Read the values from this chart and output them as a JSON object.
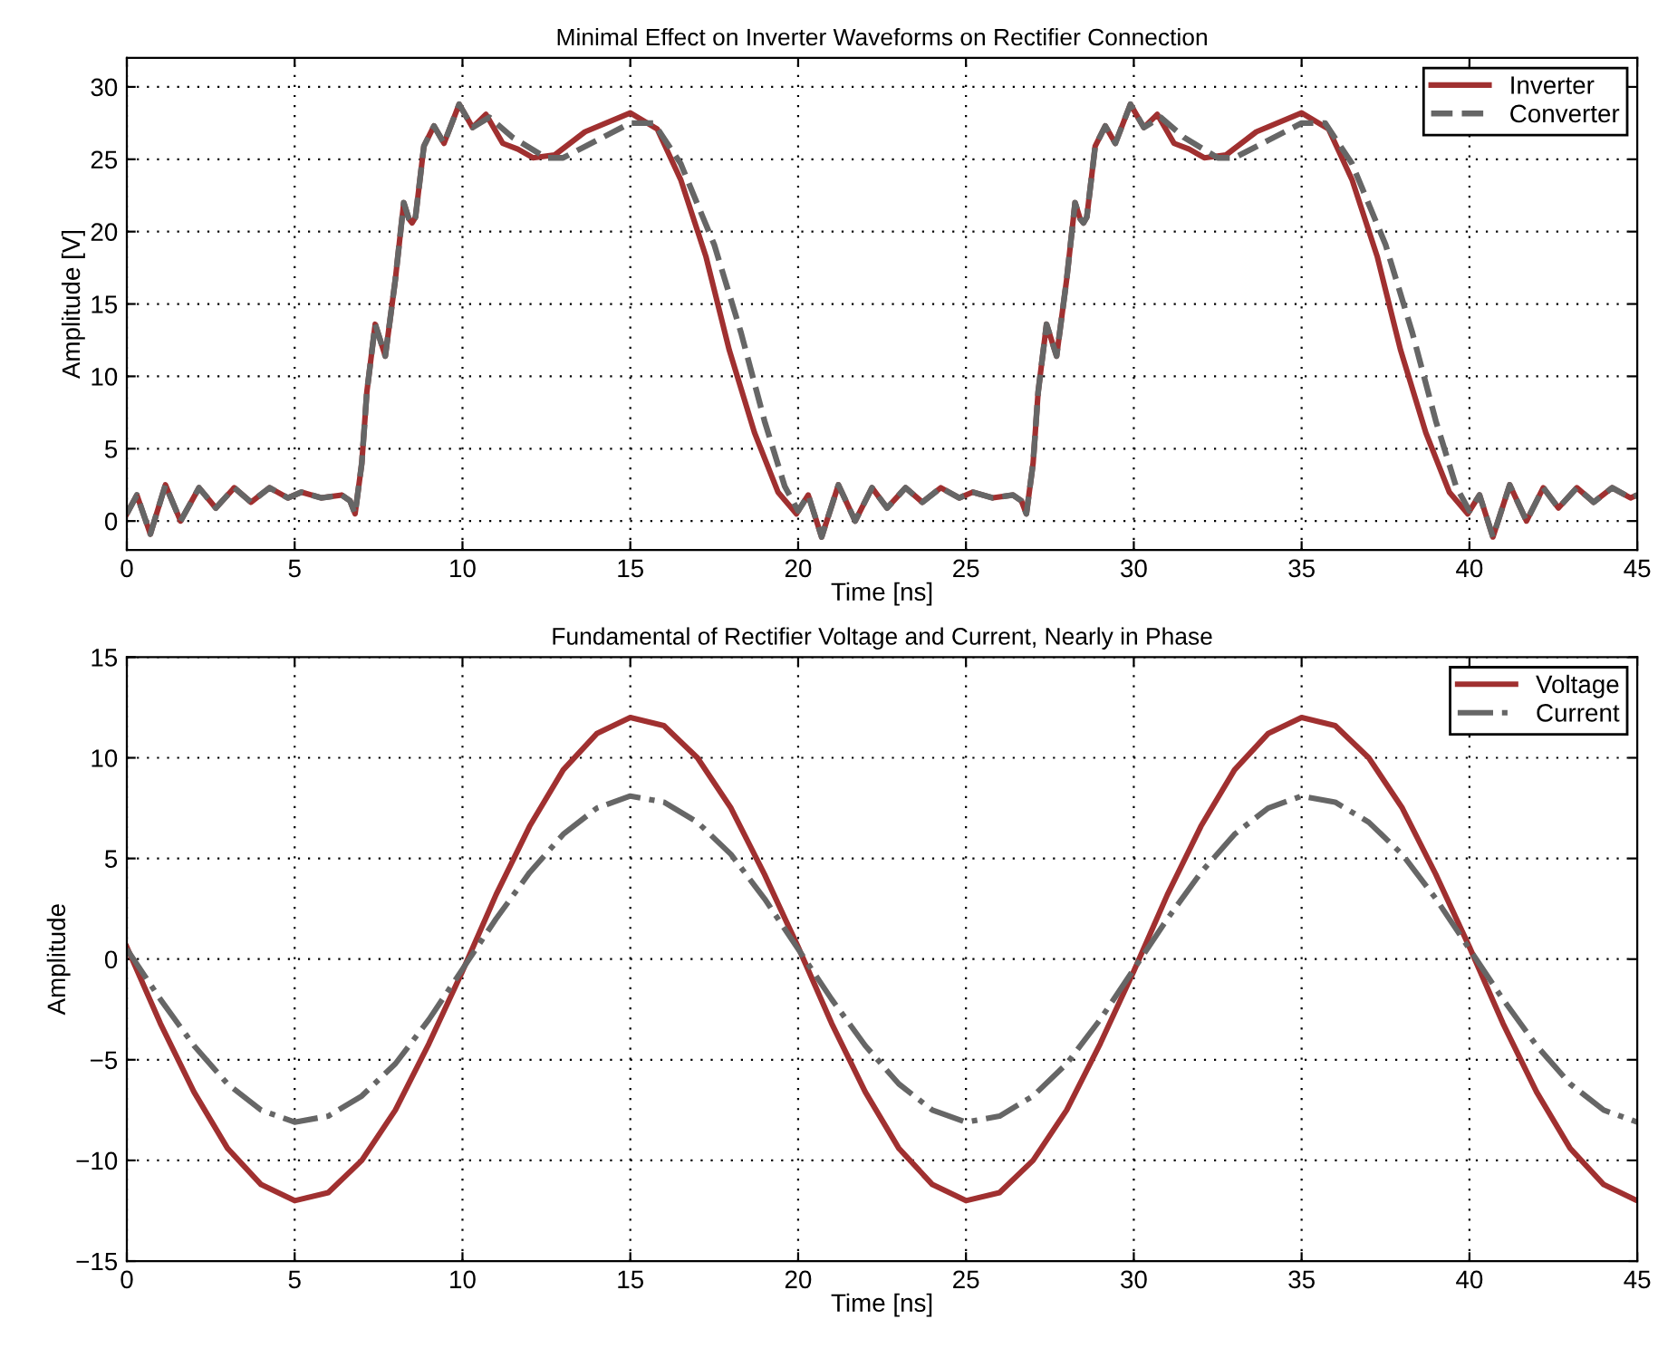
{
  "chart_data": [
    {
      "type": "line",
      "title": "Minimal Effect on Inverter Waveforms on Rectifier Connection",
      "xlabel": "Time [ns]",
      "ylabel": "Amplitude [V]",
      "xlim": [
        0,
        45
      ],
      "xticks": [
        0,
        5,
        10,
        15,
        20,
        25,
        30,
        35,
        40,
        45
      ],
      "ylim": [
        -2,
        32
      ],
      "yticks": [
        0,
        5,
        10,
        15,
        20,
        25,
        30
      ],
      "grid": true,
      "legend": "top right",
      "series": [
        {
          "name": "Inverter",
          "color": "#a03030",
          "line_style": "solid",
          "x": [
            0,
            0.3,
            0.7,
            1.15,
            1.6,
            2.15,
            2.65,
            3.2,
            3.7,
            4.25,
            4.8,
            5.2,
            5.8,
            6.4,
            6.65,
            6.8,
            7.0,
            7.15,
            7.4,
            7.7,
            8.0,
            8.25,
            8.4,
            8.5,
            8.6,
            8.85,
            9.15,
            9.45,
            9.9,
            10.3,
            10.7,
            11.2,
            11.65,
            12.1,
            12.75,
            13.65,
            15.0,
            15.8,
            16.5,
            17.25,
            17.95,
            18.7,
            19.4,
            19.95,
            20.3,
            20.7,
            21.2,
            21.7,
            22.2,
            22.65,
            23.2,
            23.7,
            24.25,
            24.8,
            25.2,
            25.8,
            26.4,
            26.65,
            26.8,
            27.0,
            27.15,
            27.4,
            27.7,
            28.0,
            28.25,
            28.4,
            28.5,
            28.6,
            28.85,
            29.15,
            29.45,
            29.9,
            30.3,
            30.7,
            31.2,
            31.65,
            32.1,
            32.75,
            33.65,
            35.0,
            35.8,
            36.5,
            37.25,
            37.95,
            38.7,
            39.4,
            39.95,
            40.3,
            40.7,
            41.2,
            41.7,
            42.2,
            42.65,
            43.2,
            43.7,
            44.25,
            44.8,
            45
          ],
          "values": [
            0.5,
            1.8,
            -0.9,
            2.5,
            0.0,
            2.3,
            0.9,
            2.3,
            1.3,
            2.3,
            1.6,
            2.0,
            1.6,
            1.8,
            1.4,
            0.5,
            4.0,
            8.9,
            13.6,
            11.4,
            16.7,
            22.0,
            20.9,
            20.6,
            21.0,
            25.9,
            27.3,
            26.1,
            28.8,
            27.2,
            28.1,
            26.1,
            25.7,
            25.1,
            25.3,
            26.9,
            28.2,
            27.1,
            23.6,
            18.3,
            11.8,
            6.1,
            2.0,
            0.5,
            1.8,
            -1.1,
            2.5,
            0.0,
            2.3,
            0.9,
            2.3,
            1.3,
            2.3,
            1.6,
            2.0,
            1.6,
            1.8,
            1.4,
            0.5,
            4.0,
            8.9,
            13.6,
            11.4,
            16.7,
            22.0,
            20.9,
            20.6,
            21.0,
            25.9,
            27.3,
            26.1,
            28.8,
            27.2,
            28.1,
            26.1,
            25.7,
            25.1,
            25.3,
            26.9,
            28.2,
            27.1,
            23.6,
            18.3,
            11.8,
            6.1,
            2.0,
            0.5,
            1.8,
            -1.1,
            2.5,
            0.0,
            2.3,
            0.9,
            2.3,
            1.3,
            2.3,
            1.6,
            1.8
          ]
        },
        {
          "name": "Converter",
          "color": "#666666",
          "line_style": "dashed",
          "x": [
            0,
            0.3,
            0.7,
            1.15,
            1.6,
            2.15,
            2.65,
            3.2,
            3.7,
            4.25,
            4.8,
            5.2,
            5.8,
            6.4,
            6.65,
            6.8,
            7.0,
            7.15,
            7.4,
            7.7,
            8.0,
            8.25,
            8.4,
            8.5,
            8.6,
            8.85,
            9.15,
            9.45,
            9.9,
            10.3,
            10.8,
            11.5,
            12.5,
            13.0,
            14.0,
            15.0,
            15.7,
            16.5,
            17.5,
            18.3,
            19.0,
            19.6,
            20.0,
            20.3,
            20.7,
            21.2,
            21.7,
            22.2,
            22.65,
            23.2,
            23.7,
            24.25,
            24.8,
            25.2,
            25.8,
            26.4,
            26.65,
            26.8,
            27.0,
            27.15,
            27.4,
            27.7,
            28.0,
            28.25,
            28.4,
            28.5,
            28.6,
            28.85,
            29.15,
            29.45,
            29.9,
            30.3,
            30.8,
            31.5,
            32.5,
            33.0,
            34.0,
            35.0,
            35.7,
            36.5,
            37.5,
            38.3,
            39.0,
            39.6,
            40.0,
            40.3,
            40.7,
            41.2,
            41.7,
            42.2,
            42.65,
            43.2,
            43.7,
            44.25,
            44.8,
            45
          ],
          "values": [
            0.5,
            1.8,
            -0.9,
            2.5,
            0.0,
            2.3,
            0.9,
            2.3,
            1.3,
            2.3,
            1.6,
            2.0,
            1.6,
            1.8,
            1.4,
            0.5,
            4.0,
            8.9,
            13.6,
            11.4,
            16.7,
            22.0,
            20.9,
            20.6,
            21.0,
            25.9,
            27.3,
            26.1,
            28.8,
            27.2,
            27.9,
            26.5,
            25.1,
            25.1,
            26.3,
            27.5,
            27.5,
            24.7,
            19.1,
            13.0,
            6.9,
            2.4,
            0.7,
            1.8,
            -1.1,
            2.5,
            0.0,
            2.3,
            0.9,
            2.3,
            1.3,
            2.3,
            1.6,
            2.0,
            1.6,
            1.8,
            1.4,
            0.5,
            4.0,
            8.9,
            13.6,
            11.4,
            16.7,
            22.0,
            20.9,
            20.6,
            21.0,
            25.9,
            27.3,
            26.1,
            28.8,
            27.2,
            27.9,
            26.5,
            25.1,
            25.1,
            26.3,
            27.5,
            27.5,
            24.7,
            19.1,
            13.0,
            6.9,
            2.4,
            0.7,
            1.8,
            -1.1,
            2.5,
            0.0,
            2.3,
            0.9,
            2.3,
            1.3,
            2.3,
            1.6,
            1.8
          ]
        }
      ]
    },
    {
      "type": "line",
      "title": "Fundamental of Rectifier Voltage and Current, Nearly in Phase",
      "xlabel": "Time [ns]",
      "ylabel": "Amplitude",
      "xlim": [
        0,
        45
      ],
      "xticks": [
        0,
        5,
        10,
        15,
        20,
        25,
        30,
        35,
        40,
        45
      ],
      "ylim": [
        -15,
        15
      ],
      "yticks": [
        {
          "value": -15,
          "label": "−15"
        },
        {
          "value": -10,
          "label": "−10"
        },
        {
          "value": -5,
          "label": "−5"
        },
        0,
        5,
        10,
        15
      ],
      "grid": true,
      "legend": "top right",
      "x": [
        0,
        1,
        2,
        3,
        4,
        5,
        6,
        7,
        8,
        9,
        10,
        11,
        12,
        13,
        14,
        15,
        16,
        17,
        18,
        19,
        20,
        21,
        22,
        23,
        24,
        25,
        26,
        27,
        28,
        29,
        30,
        31,
        32,
        33,
        34,
        35,
        36,
        37,
        38,
        39,
        40,
        41,
        42,
        43,
        44,
        45
      ],
      "series": [
        {
          "name": "Voltage",
          "color": "#a03030",
          "line_style": "solid",
          "values": [
            0.6,
            -3.2,
            -6.6,
            -9.4,
            -11.2,
            -12.0,
            -11.6,
            -10.0,
            -7.5,
            -4.2,
            -0.6,
            3.2,
            6.6,
            9.4,
            11.2,
            12.0,
            11.6,
            10.0,
            7.5,
            4.2,
            0.6,
            -3.2,
            -6.6,
            -9.4,
            -11.2,
            -12.0,
            -11.6,
            -10.0,
            -7.5,
            -4.2,
            -0.6,
            3.2,
            6.6,
            9.4,
            11.2,
            12.0,
            11.6,
            10.0,
            7.5,
            4.2,
            0.6,
            -3.2,
            -6.6,
            -9.4,
            -11.2,
            -12.0
          ]
        },
        {
          "name": "Current",
          "color": "#666666",
          "line_style": "dashdot",
          "values": [
            0.5,
            -2.0,
            -4.3,
            -6.2,
            -7.5,
            -8.1,
            -7.8,
            -6.8,
            -5.2,
            -3.0,
            -0.5,
            2.0,
            4.3,
            6.2,
            7.5,
            8.1,
            7.8,
            6.8,
            5.2,
            3.0,
            0.5,
            -2.0,
            -4.3,
            -6.2,
            -7.5,
            -8.1,
            -7.8,
            -6.8,
            -5.2,
            -3.0,
            -0.5,
            2.0,
            4.3,
            6.2,
            7.5,
            8.1,
            7.8,
            6.8,
            5.2,
            3.0,
            0.5,
            -2.0,
            -4.3,
            -6.2,
            -7.5,
            -8.1
          ]
        }
      ]
    }
  ]
}
